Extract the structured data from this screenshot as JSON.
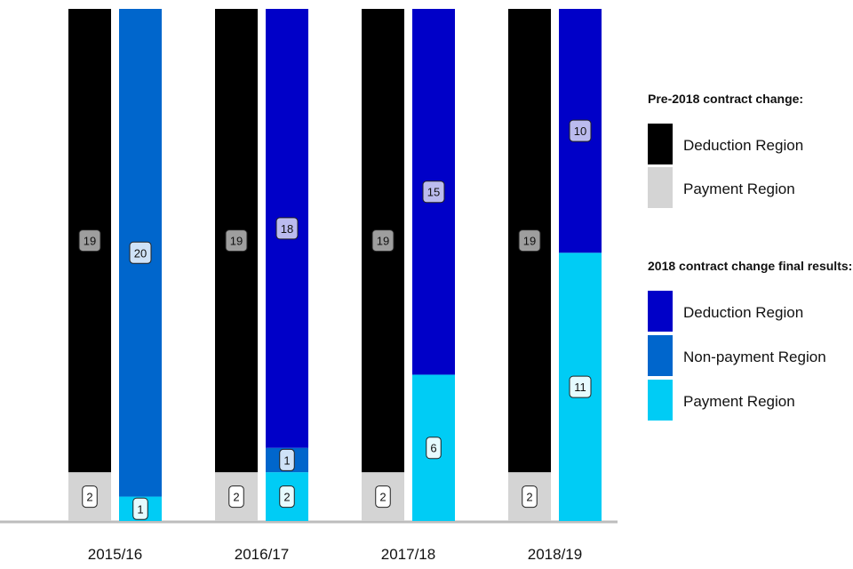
{
  "chart_data": {
    "type": "bar",
    "stacked": true,
    "categories": [
      "2015/16",
      "2016/17",
      "2017/18",
      "2018/19"
    ],
    "groups": [
      {
        "legend_title": "Pre-2018 contract change:",
        "series": [
          {
            "name": "Payment Region",
            "color": "#d4d4d4",
            "values": [
              2,
              2,
              2,
              2
            ]
          },
          {
            "name": "Deduction Region",
            "color": "#000000",
            "values": [
              19,
              19,
              19,
              19
            ]
          }
        ]
      },
      {
        "legend_title": "2018 contract change final results:",
        "series": [
          {
            "name": "Payment Region",
            "color": "#00ccf5",
            "values": [
              1,
              2,
              6,
              11
            ]
          },
          {
            "name": "Non-payment Region",
            "color": "#0066cc",
            "values": [
              20,
              1,
              0,
              0
            ]
          },
          {
            "name": "Deduction Region",
            "color": "#0000c8",
            "values": [
              0,
              18,
              15,
              10
            ]
          }
        ]
      }
    ],
    "legend_position": "right",
    "grid": false,
    "ylim": [
      0,
      21
    ]
  }
}
